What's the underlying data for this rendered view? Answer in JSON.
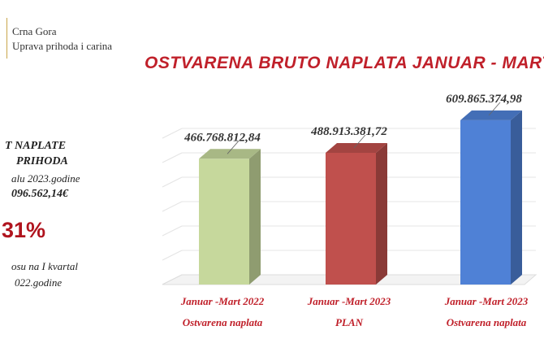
{
  "header": {
    "org_line1": "Crna Gora",
    "org_line2": "Uprava prihoda i carina"
  },
  "side_panel": {
    "line1": "T NAPLATE",
    "line2": "PRIHODA",
    "line3": "alu 2023.godine",
    "line4": "096.562,14€",
    "percent": "31%",
    "line5": "osu na I kvartal",
    "line6": "022.godine"
  },
  "chart_data": {
    "type": "bar",
    "title": "OSTVARENA BRUTO NAPLATA  JANUAR - MART",
    "categories": [
      [
        "Januar -Mart 2022",
        "Ostvarena naplata"
      ],
      [
        "Januar -Mart 2023",
        "PLAN"
      ],
      [
        "Januar -Mart 2023",
        "Ostvarena naplata"
      ]
    ],
    "values": [
      466768812.84,
      488913381.72,
      609865374.98
    ],
    "value_labels": [
      "466.768.812,84",
      "488.913.381,72",
      "609.865.374,98"
    ],
    "colors": [
      "#c6d89c",
      "#c0504d",
      "#4f81d6"
    ],
    "grid": true,
    "legend": "none"
  }
}
